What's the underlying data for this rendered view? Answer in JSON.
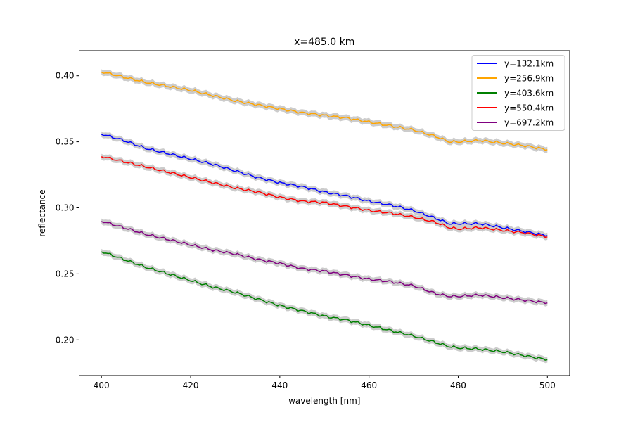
{
  "chart_data": {
    "type": "line",
    "title": "x=485.0 km",
    "xlabel": "wavelength [nm]",
    "ylabel": "reflectance",
    "xlim": [
      395,
      505
    ],
    "ylim": [
      0.173,
      0.419
    ],
    "x_ticks": [
      400,
      420,
      440,
      460,
      480,
      500
    ],
    "x_tick_labels": [
      "400",
      "420",
      "440",
      "460",
      "480",
      "500"
    ],
    "y_ticks": [
      0.2,
      0.25,
      0.3,
      0.35,
      0.4
    ],
    "y_tick_labels": [
      "0.20",
      "0.25",
      "0.30",
      "0.35",
      "0.40"
    ],
    "grid": false,
    "legend_position": "top-right",
    "band_color": "#cccccc",
    "x": [
      400,
      405,
      410,
      415,
      420,
      425,
      430,
      435,
      440,
      445,
      450,
      455,
      460,
      465,
      470,
      475,
      478,
      480,
      485,
      490,
      495,
      500
    ],
    "series": [
      {
        "name": "y=132.1km",
        "color": "#0000ff",
        "values": [
          0.356,
          0.351,
          0.345,
          0.341,
          0.337,
          0.333,
          0.328,
          0.323,
          0.319,
          0.316,
          0.312,
          0.309,
          0.305,
          0.302,
          0.298,
          0.292,
          0.288,
          0.288,
          0.288,
          0.285,
          0.282,
          0.279
        ]
      },
      {
        "name": "y=256.9km",
        "color": "#ffa500",
        "values": [
          0.403,
          0.399,
          0.395,
          0.392,
          0.389,
          0.385,
          0.381,
          0.378,
          0.375,
          0.372,
          0.37,
          0.368,
          0.365,
          0.362,
          0.359,
          0.354,
          0.35,
          0.35,
          0.351,
          0.349,
          0.347,
          0.344
        ]
      },
      {
        "name": "y=403.6km",
        "color": "#008000",
        "values": [
          0.267,
          0.261,
          0.255,
          0.25,
          0.245,
          0.24,
          0.236,
          0.231,
          0.226,
          0.222,
          0.218,
          0.215,
          0.211,
          0.207,
          0.203,
          0.198,
          0.195,
          0.194,
          0.193,
          0.191,
          0.188,
          0.185
        ]
      },
      {
        "name": "y=550.4km",
        "color": "#ff0000",
        "values": [
          0.339,
          0.335,
          0.331,
          0.327,
          0.323,
          0.319,
          0.315,
          0.312,
          0.308,
          0.305,
          0.304,
          0.301,
          0.298,
          0.296,
          0.293,
          0.289,
          0.285,
          0.284,
          0.285,
          0.283,
          0.281,
          0.278
        ]
      },
      {
        "name": "y=697.2km",
        "color": "#800080",
        "values": [
          0.29,
          0.285,
          0.28,
          0.276,
          0.272,
          0.268,
          0.265,
          0.261,
          0.258,
          0.254,
          0.252,
          0.249,
          0.246,
          0.244,
          0.241,
          0.235,
          0.233,
          0.233,
          0.234,
          0.232,
          0.23,
          0.228
        ]
      }
    ]
  }
}
